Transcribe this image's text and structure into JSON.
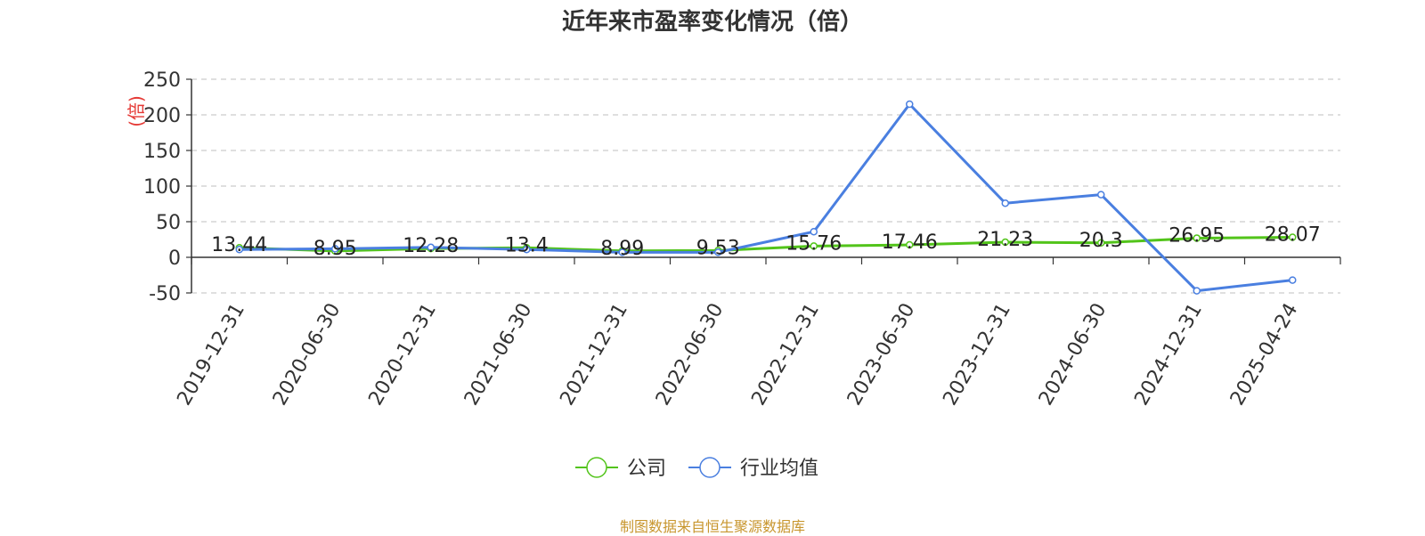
{
  "colors": {
    "company": "#52c41a",
    "industry": "#4a7fe0",
    "grid": "#cccccc",
    "axis": "#333333",
    "ylabel": "#e53935",
    "source": "#c8962e"
  },
  "footer": {
    "source": "制图数据来自恒生聚源数据库"
  },
  "chart_data": {
    "type": "line",
    "title": "近年来市盈率变化情况（倍）",
    "ylabel": "(倍)",
    "xlabel": "",
    "ylim": [
      -50,
      250
    ],
    "yticks": [
      -50,
      0,
      50,
      100,
      150,
      200,
      250
    ],
    "ytick_labels": [
      "-50",
      "0",
      "50",
      "100",
      "150",
      "200",
      "250"
    ],
    "grid": true,
    "legend_position": "bottom",
    "categories": [
      "2019-12-31",
      "2020-06-30",
      "2020-12-31",
      "2021-06-30",
      "2021-12-31",
      "2022-06-30",
      "2022-12-31",
      "2023-06-30",
      "2023-12-31",
      "2024-06-30",
      "2024-12-31",
      "2025-04-24"
    ],
    "series": [
      {
        "name": "公司",
        "values": [
          13.44,
          8.95,
          12.28,
          13.4,
          8.99,
          9.53,
          15.76,
          17.46,
          21.23,
          20.3,
          26.95,
          28.07
        ],
        "labels": [
          "13.44",
          "8.95",
          "12.28",
          "13.4",
          "8.99",
          "9.53",
          "15.76",
          "17.46",
          "21.23",
          "20.3",
          "26.95",
          "28.07"
        ]
      },
      {
        "name": "行业均值",
        "values": [
          11,
          12,
          14,
          11,
          7,
          7,
          36,
          215,
          76,
          88,
          -47,
          -32
        ]
      }
    ]
  }
}
